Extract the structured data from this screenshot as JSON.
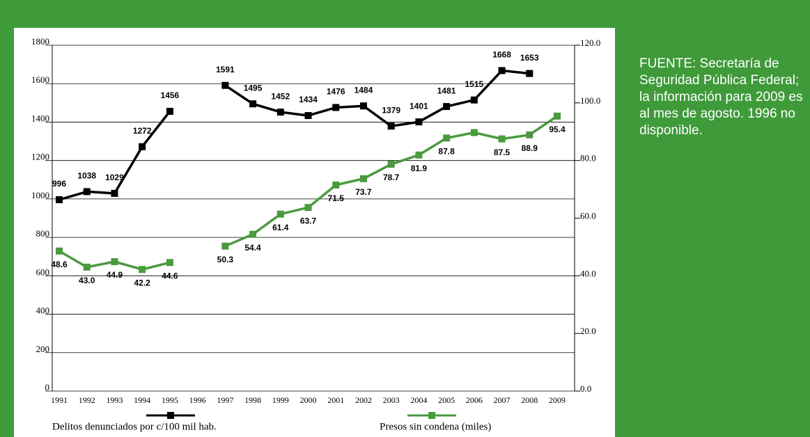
{
  "chart_data": {
    "type": "line",
    "categories": [
      "1991",
      "1992",
      "1993",
      "1994",
      "1995",
      "1996",
      "1997",
      "1998",
      "1999",
      "2000",
      "2001",
      "2002",
      "2003",
      "2004",
      "2005",
      "2006",
      "2007",
      "2008",
      "2009"
    ],
    "series": [
      {
        "name": "Delitos denunciados por c/100 mil hab.",
        "color": "#000000",
        "values": [
          996,
          1038,
          1029,
          1272,
          1456,
          null,
          1591,
          1495,
          1452,
          1434,
          1476,
          1484,
          1379,
          1401,
          1481,
          1515,
          1668,
          1653,
          null
        ]
      },
      {
        "name": "Presos sin condena (miles)",
        "color": "#4a9a3e",
        "axis": "y2",
        "values": [
          48.6,
          43.0,
          44.9,
          42.2,
          44.6,
          null,
          50.3,
          54.4,
          61.4,
          63.7,
          71.5,
          73.7,
          78.7,
          81.9,
          87.8,
          89.7,
          87.5,
          88.9,
          95.4
        ],
        "value_labels": [
          "48.6",
          "43.0",
          "44.9",
          "42.2",
          "44.6",
          null,
          "50.3",
          "54.4",
          "61.4",
          "63.7",
          "71.5",
          "73.7",
          "78.7",
          "81.9",
          "87.8",
          null,
          "87.5",
          "88.9",
          "95.4"
        ]
      }
    ],
    "ylim": [
      0,
      1800
    ],
    "yticks": [
      0,
      200,
      400,
      600,
      800,
      1000,
      1200,
      1400,
      1600,
      1800
    ],
    "y2lim": [
      0,
      120
    ],
    "y2ticks": [
      {
        "value": 0,
        "label": "0.0"
      },
      {
        "value": 20,
        "label": "20.0"
      },
      {
        "value": 40,
        "label": "40.0"
      },
      {
        "value": 60,
        "label": "60.0"
      },
      {
        "value": 80,
        "label": "80.0"
      },
      {
        "value": 100,
        "label": "100.0"
      },
      {
        "value": 120,
        "label": "120.0"
      }
    ],
    "grid": true
  },
  "note": "FUENTE: Secretaría de Seguridad Pública Federal; la información para 2009 es al mes de agosto. 1996 no disponible."
}
